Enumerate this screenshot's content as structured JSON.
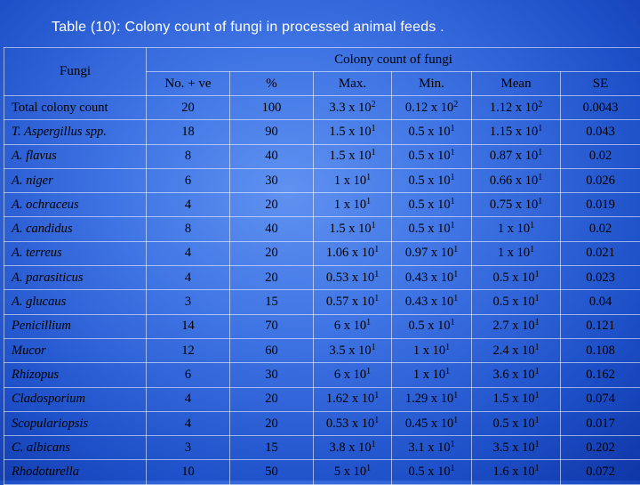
{
  "title": "Table (10): Colony count of fungi in processed animal feeds .",
  "header": {
    "fungi": "Fungi",
    "group": "Colony count of fungi",
    "columns": [
      "No. + ve",
      "%",
      "Max.",
      "Min.",
      "Mean",
      "SE"
    ]
  },
  "rows": [
    {
      "name": "Total colony count",
      "italic": false,
      "no": "20",
      "pct": "100",
      "max": [
        "3.3 x 10",
        "2"
      ],
      "min": [
        "0.12 x 10",
        "2"
      ],
      "mean": [
        "1.12 x 10",
        "2"
      ],
      "se": "0.0043"
    },
    {
      "name": "T. Aspergillus spp.",
      "italic": true,
      "no": "18",
      "pct": "90",
      "max": [
        "1.5 x 10",
        "1"
      ],
      "min": [
        "0.5 x 10",
        "1"
      ],
      "mean": [
        "1.15 x 10",
        "1"
      ],
      "se": "0.043"
    },
    {
      "name": "A. flavus",
      "italic": true,
      "no": "8",
      "pct": "40",
      "max": [
        "1.5 x 10",
        "1"
      ],
      "min": [
        "0.5 x 10",
        "1"
      ],
      "mean": [
        "0.87 x 10",
        "1"
      ],
      "se": "0.02"
    },
    {
      "name": "A. niger",
      "italic": true,
      "no": "6",
      "pct": "30",
      "max": [
        "1 x 10",
        "1"
      ],
      "min": [
        "0.5 x 10",
        "1"
      ],
      "mean": [
        "0.66 x 10",
        "1"
      ],
      "se": "0.026"
    },
    {
      "name": "A. ochraceus",
      "italic": true,
      "no": "4",
      "pct": "20",
      "max": [
        "1 x 10",
        "1"
      ],
      "min": [
        "0.5 x 10",
        "1"
      ],
      "mean": [
        "0.75 x 10",
        "1"
      ],
      "se": "0.019"
    },
    {
      "name": "A. candidus",
      "italic": true,
      "no": "8",
      "pct": "40",
      "max": [
        "1.5 x 10",
        "1"
      ],
      "min": [
        "0.5 x 10",
        "1"
      ],
      "mean": [
        "1 x 10",
        "1"
      ],
      "se": "0.02"
    },
    {
      "name": "A. terreus",
      "italic": true,
      "no": "4",
      "pct": "20",
      "max": [
        "1.06 x 10",
        "1"
      ],
      "min": [
        "0.97 x 10",
        "1"
      ],
      "mean": [
        "1 x 10",
        "1"
      ],
      "se": "0.021"
    },
    {
      "name": "A. parasiticus",
      "italic": true,
      "no": "4",
      "pct": "20",
      "max": [
        "0.53 x 10",
        "1"
      ],
      "min": [
        "0.43 x 10",
        "1"
      ],
      "mean": [
        "0.5 x 10",
        "1"
      ],
      "se": "0.023"
    },
    {
      "name": "A. glucaus",
      "italic": true,
      "no": "3",
      "pct": "15",
      "max": [
        "0.57 x 10",
        "1"
      ],
      "min": [
        "0.43 x 10",
        "1"
      ],
      "mean": [
        "0.5 x 10",
        "1"
      ],
      "se": "0.04"
    },
    {
      "name": "Penicillium",
      "italic": true,
      "no": "14",
      "pct": "70",
      "max": [
        "6 x 10",
        "1"
      ],
      "min": [
        "0.5 x 10",
        "1"
      ],
      "mean": [
        "2.7 x 10",
        "1"
      ],
      "se": "0.121"
    },
    {
      "name": "Mucor",
      "italic": true,
      "no": "12",
      "pct": "60",
      "max": [
        "3.5 x 10",
        "1"
      ],
      "min": [
        "1 x 10",
        "1"
      ],
      "mean": [
        "2.4 x 10",
        "1"
      ],
      "se": "0.108"
    },
    {
      "name": "Rhizopus",
      "italic": true,
      "no": "6",
      "pct": "30",
      "max": [
        "6 x 10",
        "1"
      ],
      "min": [
        "1 x 10",
        "1"
      ],
      "mean": [
        "3.6 x 10",
        "1"
      ],
      "se": "0.162"
    },
    {
      "name": "Cladosporium",
      "italic": true,
      "no": "4",
      "pct": "20",
      "max": [
        "1.62 x 10",
        "1"
      ],
      "min": [
        "1.29 x 10",
        "1"
      ],
      "mean": [
        "1.5 x 10",
        "1"
      ],
      "se": "0.074"
    },
    {
      "name": "Scopulariopsis",
      "italic": true,
      "no": "4",
      "pct": "20",
      "max": [
        "0.53 x 10",
        "1"
      ],
      "min": [
        "0.45 x 10",
        "1"
      ],
      "mean": [
        "0.5 x 10",
        "1"
      ],
      "se": "0.017"
    },
    {
      "name": "C. albicans",
      "italic": true,
      "no": "3",
      "pct": "15",
      "max": [
        "3.8 x 10",
        "1"
      ],
      "min": [
        "3.1 x 10",
        "1"
      ],
      "mean": [
        "3.5 x 10",
        "1"
      ],
      "se": "0.202"
    },
    {
      "name": "Rhodoturella",
      "italic": true,
      "no": "10",
      "pct": "50",
      "max": [
        "5 x 10",
        "1"
      ],
      "min": [
        "0.5 x 10",
        "1"
      ],
      "mean": [
        "1.6 x 10",
        "1"
      ],
      "se": "0.072"
    }
  ]
}
